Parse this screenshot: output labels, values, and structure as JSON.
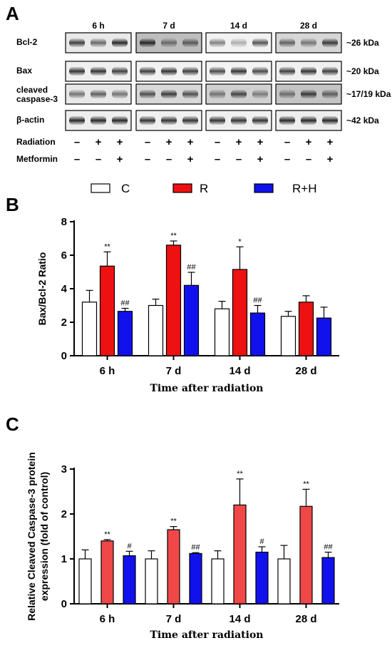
{
  "panels": {
    "a_label": "A",
    "b_label": "B",
    "c_label": "C"
  },
  "blot": {
    "timepoints": [
      "6 h",
      "7 d",
      "14 d",
      "28 d"
    ],
    "rows": [
      {
        "label": "Bcl-2",
        "label2": "",
        "kda": "~26 kDa"
      },
      {
        "label": "Bax",
        "label2": "",
        "kda": "~20 kDa"
      },
      {
        "label": "cleaved",
        "label2": "caspase-3",
        "kda": "~17/19 kDa"
      },
      {
        "label": "β-actin",
        "label2": "",
        "kda": "~42 kDa"
      }
    ],
    "treatments": [
      {
        "label": "Radiation",
        "signs": [
          "–",
          "+",
          "+"
        ]
      },
      {
        "label": "Metformin",
        "signs": [
          "–",
          "–",
          "+"
        ]
      }
    ]
  },
  "legend": {
    "items": [
      {
        "label": "C",
        "color": "#ffffff"
      },
      {
        "label": "R",
        "color": "#ee1111"
      },
      {
        "label": "R+H",
        "color": "#1111ee"
      }
    ]
  },
  "chart_data": [
    {
      "type": "bar",
      "title": "",
      "categories": [
        "6 h",
        "7 d",
        "14 d",
        "28 d"
      ],
      "xlabel": "Time after radiation",
      "ylabel": "Bax/Bcl-2 Ratio",
      "ylim": [
        0,
        8
      ],
      "yticks": [
        0,
        2,
        4,
        6,
        8
      ],
      "series": [
        {
          "name": "C",
          "color": "#ffffff",
          "values": [
            3.2,
            3.0,
            2.8,
            2.35
          ],
          "errors": [
            0.7,
            0.38,
            0.45,
            0.3
          ],
          "marks": [
            "",
            "",
            "",
            ""
          ]
        },
        {
          "name": "R",
          "color": "#ee1111",
          "values": [
            5.35,
            6.6,
            5.15,
            3.2
          ],
          "errors": [
            0.85,
            0.25,
            1.35,
            0.38
          ],
          "marks": [
            "**",
            "**",
            "*",
            ""
          ]
        },
        {
          "name": "R+H",
          "color": "#1111ee",
          "values": [
            2.65,
            4.2,
            2.55,
            2.25
          ],
          "errors": [
            0.18,
            0.78,
            0.45,
            0.65
          ],
          "marks": [
            "##",
            "##",
            "##",
            ""
          ]
        }
      ]
    },
    {
      "type": "bar",
      "title": "",
      "categories": [
        "6 h",
        "7 d",
        "14 d",
        "28 d"
      ],
      "xlabel": "Time after radiation",
      "ylabel": "Relative Cleaved Caspase-3 protein expression (fold of control)",
      "ylim": [
        0,
        3
      ],
      "yticks": [
        0,
        1,
        2,
        3
      ],
      "series": [
        {
          "name": "C",
          "color": "#ffffff",
          "values": [
            1.0,
            1.0,
            1.0,
            1.0
          ],
          "errors": [
            0.2,
            0.18,
            0.18,
            0.3
          ],
          "marks": [
            "",
            "",
            "",
            ""
          ]
        },
        {
          "name": "R",
          "color": "#f04848",
          "values": [
            1.4,
            1.65,
            2.2,
            2.17
          ],
          "errors": [
            0.03,
            0.07,
            0.58,
            0.38
          ],
          "marks": [
            "**",
            "**",
            "**",
            "**"
          ]
        },
        {
          "name": "R+H",
          "color": "#1111ee",
          "values": [
            1.07,
            1.12,
            1.15,
            1.03
          ],
          "errors": [
            0.1,
            0.02,
            0.12,
            0.12
          ],
          "marks": [
            "#",
            "##",
            "#",
            "##"
          ]
        }
      ]
    }
  ]
}
